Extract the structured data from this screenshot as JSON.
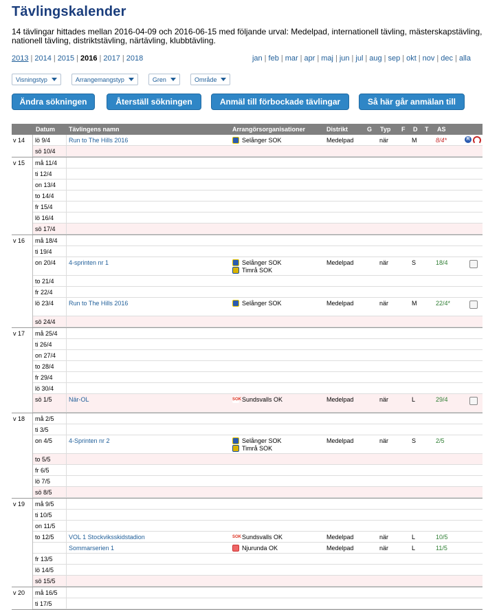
{
  "title": "Tävlingskalender",
  "summary": "14 tävlingar hittades mellan 2016-04-09 och 2016-06-15 med följande urval: Medelpad, internationell tävling, mästerskapstävling, nationell tävling, distriktstävling, närtävling, klubbtävling.",
  "years": [
    "2013",
    "2014",
    "2015",
    "2016",
    "2017",
    "2018"
  ],
  "current_year": "2016",
  "months": [
    "jan",
    "feb",
    "mar",
    "apr",
    "maj",
    "jun",
    "jul",
    "aug",
    "sep",
    "okt",
    "nov",
    "dec",
    "alla"
  ],
  "filters": [
    "Visningstyp",
    "Arrangemangstyp",
    "Gren",
    "Område"
  ],
  "buttons": {
    "change": "Ändra sökningen",
    "reset": "Återställ sökningen",
    "register": "Anmäl till förbockade tävlingar",
    "howto": "Så här går anmälan till"
  },
  "columns": {
    "date": "Datum",
    "name": "Tävlingens namn",
    "org": "Arrangörsorganisationer",
    "district": "Distrikt",
    "g": "G",
    "typ": "Typ",
    "f": "F",
    "d": "D",
    "t": "T",
    "as": "AS"
  },
  "weeks": [
    {
      "label": "v 14",
      "rows": [
        {
          "date": "lö 9/4",
          "name": "Run to The Hills 2016",
          "orgs": [
            {
              "name": "Selånger SOK",
              "logo": "sel"
            }
          ],
          "district": "Medelpad",
          "typ": "när",
          "d": "M",
          "as": "8/4*",
          "as_color": "red",
          "icons": true
        },
        {
          "date": "sö 10/4",
          "sun": true
        }
      ]
    },
    {
      "label": "v 15",
      "rows": [
        {
          "date": "må 11/4"
        },
        {
          "date": "ti 12/4"
        },
        {
          "date": "on 13/4"
        },
        {
          "date": "to 14/4"
        },
        {
          "date": "fr 15/4"
        },
        {
          "date": "lö 16/4"
        },
        {
          "date": "sö 17/4",
          "sun": true
        }
      ]
    },
    {
      "label": "v 16",
      "rows": [
        {
          "date": "må 18/4"
        },
        {
          "date": "ti 19/4"
        },
        {
          "date": "on 20/4",
          "name": "4-sprinten nr 1",
          "orgs": [
            {
              "name": "Selånger SOK",
              "logo": "sel"
            },
            {
              "name": "Timrå SOK",
              "logo": "tim"
            }
          ],
          "district": "Medelpad",
          "typ": "när",
          "d": "S",
          "as": "18/4",
          "as_color": "green",
          "checkbox": true
        },
        {
          "date": "to 21/4"
        },
        {
          "date": "fr 22/4"
        },
        {
          "date": "lö 23/4",
          "name": "Run to The Hills 2016",
          "orgs": [
            {
              "name": "Selånger SOK",
              "logo": "sel"
            }
          ],
          "district": "Medelpad",
          "typ": "när",
          "d": "M",
          "as": "22/4*",
          "as_color": "green",
          "checkbox": true,
          "tall": true
        },
        {
          "date": "sö 24/4",
          "sun": true
        }
      ]
    },
    {
      "label": "v 17",
      "rows": [
        {
          "date": "må 25/4"
        },
        {
          "date": "ti 26/4"
        },
        {
          "date": "on 27/4"
        },
        {
          "date": "to 28/4"
        },
        {
          "date": "fr 29/4"
        },
        {
          "date": "lö 30/4"
        },
        {
          "date": "sö 1/5",
          "sun": true,
          "name": "När-OL",
          "orgs": [
            {
              "name": "Sundsvalls OK",
              "logo": "sun"
            }
          ],
          "district": "Medelpad",
          "typ": "när",
          "d": "L",
          "as": "29/4",
          "as_color": "green",
          "checkbox": true,
          "tall": true
        }
      ]
    },
    {
      "label": "v 18",
      "rows": [
        {
          "date": "må 2/5"
        },
        {
          "date": "ti 3/5"
        },
        {
          "date": "on 4/5",
          "name": "4-Sprinten nr 2",
          "orgs": [
            {
              "name": "Selånger SOK",
              "logo": "sel"
            },
            {
              "name": "Timrå SOK",
              "logo": "tim"
            }
          ],
          "district": "Medelpad",
          "typ": "när",
          "d": "S",
          "as": "2/5",
          "as_color": "green"
        },
        {
          "date": "to 5/5",
          "sun": true
        },
        {
          "date": "fr 6/5"
        },
        {
          "date": "lö 7/5"
        },
        {
          "date": "sö 8/5",
          "sun": true
        }
      ]
    },
    {
      "label": "v 19",
      "rows": [
        {
          "date": "må 9/5"
        },
        {
          "date": "ti 10/5"
        },
        {
          "date": "on 11/5"
        },
        {
          "date": "to 12/5",
          "name": "VOL 1 Stockviksskidstadion",
          "orgs": [
            {
              "name": "Sundsvalls OK",
              "logo": "sun"
            }
          ],
          "district": "Medelpad",
          "typ": "när",
          "d": "L",
          "as": "10/5",
          "as_color": "green"
        },
        {
          "date": "",
          "name": "Sommarserien 1",
          "orgs": [
            {
              "name": "Njurunda OK",
              "logo": "nju"
            }
          ],
          "district": "Medelpad",
          "typ": "när",
          "d": "L",
          "as": "11/5",
          "as_color": "green"
        },
        {
          "date": "fr 13/5"
        },
        {
          "date": "lö 14/5"
        },
        {
          "date": "sö 15/5",
          "sun": true
        }
      ]
    },
    {
      "label": "v 20",
      "rows": [
        {
          "date": "må 16/5"
        },
        {
          "date": "ti 17/5"
        }
      ]
    }
  ]
}
